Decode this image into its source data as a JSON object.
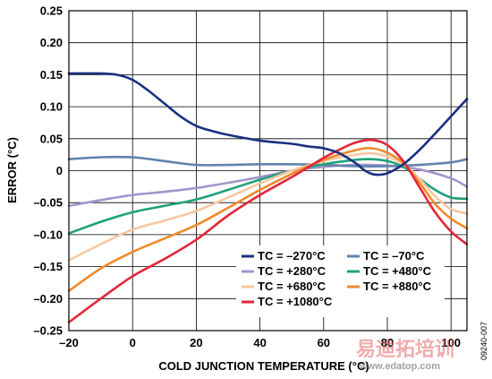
{
  "chart_data": {
    "type": "line",
    "title": "",
    "xlabel": "COLD JUNCTION TEMPERATURE (°C)",
    "ylabel": "ERROR (°C)",
    "xlim": [
      -20,
      105
    ],
    "ylim": [
      -0.25,
      0.25
    ],
    "xticks": [
      -20,
      0,
      20,
      40,
      60,
      80,
      100
    ],
    "xtick_labels": [
      "–20",
      "0",
      "20",
      "40",
      "60",
      "80",
      "100"
    ],
    "yticks": [
      0.25,
      0.2,
      0.15,
      0.1,
      0.05,
      0,
      -0.05,
      -0.1,
      -0.15,
      -0.2,
      -0.25
    ],
    "ytick_labels": [
      "0.25",
      "0.20",
      "0.15",
      "0.10",
      "0.05",
      "0",
      "–0.05",
      "–0.10",
      "–0.15",
      "–0.20",
      "–0.25"
    ],
    "grid": true,
    "legend_position": "bottom-right",
    "series": [
      {
        "name": "TC = –270°C",
        "color": "#1b2f80",
        "x": [
          -20,
          -10,
          -5,
          0,
          5,
          10,
          15,
          20,
          25,
          30,
          40,
          50,
          55,
          60,
          65,
          70,
          73,
          76,
          80,
          85,
          90,
          95,
          100,
          105
        ],
        "y": [
          0.152,
          0.152,
          0.15,
          0.142,
          0.125,
          0.105,
          0.085,
          0.07,
          0.062,
          0.056,
          0.047,
          0.042,
          0.038,
          0.035,
          0.027,
          0.012,
          0.0,
          -0.006,
          -0.004,
          0.01,
          0.032,
          0.058,
          0.085,
          0.112
        ]
      },
      {
        "name": "TC = –70°C",
        "color": "#5f83ad",
        "x": [
          -20,
          -10,
          0,
          10,
          20,
          30,
          40,
          50,
          60,
          70,
          80,
          90,
          100,
          105
        ],
        "y": [
          0.018,
          0.021,
          0.021,
          0.015,
          0.009,
          0.009,
          0.01,
          0.01,
          0.009,
          0.007,
          0.007,
          0.009,
          0.013,
          0.018
        ]
      },
      {
        "name": "TC = +280°C",
        "color": "#a394cc",
        "x": [
          -20,
          -10,
          0,
          10,
          20,
          30,
          40,
          50,
          60,
          70,
          80,
          90,
          100,
          105
        ],
        "y": [
          -0.055,
          -0.046,
          -0.038,
          -0.033,
          -0.027,
          -0.019,
          -0.01,
          0.0,
          0.006,
          0.009,
          0.008,
          0.002,
          -0.012,
          -0.025
        ]
      },
      {
        "name": "TC = +480°C",
        "color": "#1ea27a",
        "x": [
          -20,
          -10,
          0,
          10,
          20,
          30,
          40,
          50,
          60,
          70,
          75,
          80,
          85,
          90,
          95,
          100,
          105
        ],
        "y": [
          -0.098,
          -0.08,
          -0.065,
          -0.055,
          -0.045,
          -0.03,
          -0.014,
          0.0,
          0.01,
          0.017,
          0.018,
          0.015,
          0.006,
          -0.012,
          -0.03,
          -0.042,
          -0.044
        ]
      },
      {
        "name": "TC = +680°C",
        "color": "#f7c8a2",
        "x": [
          -20,
          -10,
          0,
          10,
          20,
          30,
          40,
          50,
          60,
          70,
          75,
          80,
          85,
          90,
          95,
          100,
          105
        ],
        "y": [
          -0.14,
          -0.115,
          -0.092,
          -0.078,
          -0.063,
          -0.042,
          -0.02,
          0.0,
          0.015,
          0.025,
          0.027,
          0.022,
          0.01,
          -0.012,
          -0.04,
          -0.06,
          -0.067
        ]
      },
      {
        "name": "TC = +880°C",
        "color": "#f08a2a",
        "x": [
          -20,
          -10,
          0,
          10,
          20,
          30,
          40,
          50,
          60,
          70,
          75,
          80,
          85,
          90,
          95,
          100,
          105
        ],
        "y": [
          -0.188,
          -0.153,
          -0.127,
          -0.106,
          -0.085,
          -0.058,
          -0.03,
          -0.005,
          0.017,
          0.032,
          0.035,
          0.028,
          0.012,
          -0.018,
          -0.052,
          -0.075,
          -0.09
        ]
      },
      {
        "name": "TC = +1080°C",
        "color": "#e3263a",
        "x": [
          -20,
          -10,
          0,
          10,
          20,
          30,
          40,
          50,
          60,
          65,
          70,
          75,
          80,
          85,
          90,
          95,
          100,
          105
        ],
        "y": [
          -0.237,
          -0.2,
          -0.165,
          -0.138,
          -0.108,
          -0.07,
          -0.038,
          -0.01,
          0.02,
          0.033,
          0.044,
          0.048,
          0.04,
          0.015,
          -0.025,
          -0.065,
          -0.095,
          -0.115
        ]
      }
    ]
  },
  "figure_id": "09240-007",
  "watermark": {
    "text_cn": "易迪拓培训",
    "url": "www.edatop.com"
  }
}
